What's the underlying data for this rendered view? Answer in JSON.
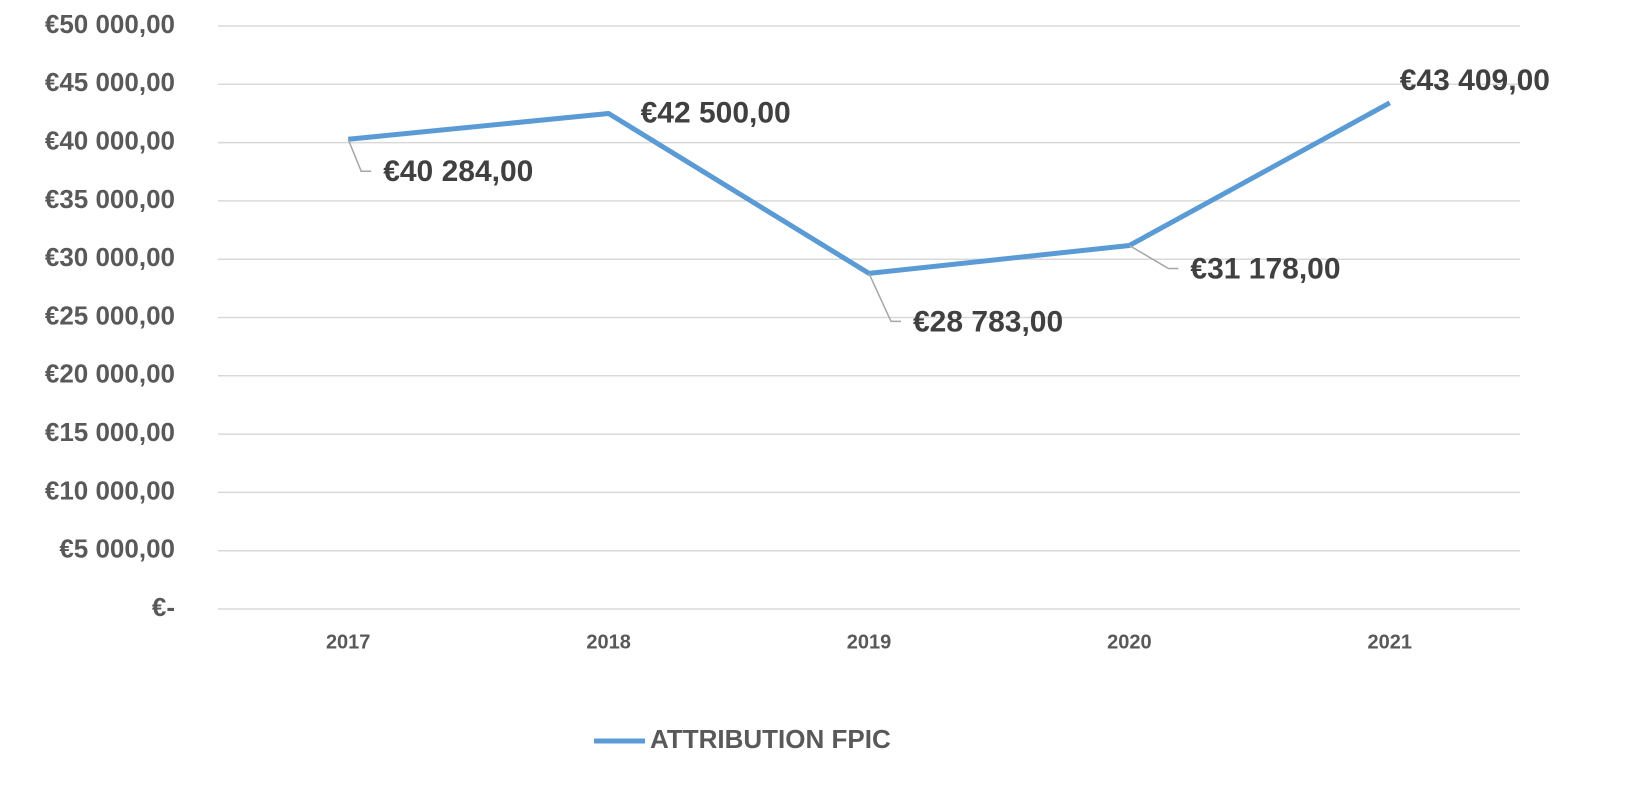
{
  "chart_data": {
    "type": "line",
    "categories": [
      "2017",
      "2018",
      "2019",
      "2020",
      "2021"
    ],
    "series": [
      {
        "name": "ATTRIBUTION FPIC",
        "color": "#5b9bd5",
        "values": [
          40284,
          42500,
          28783,
          31178,
          43409
        ],
        "value_labels": [
          "€40 284,00",
          "€42 500,00",
          "€28 783,00",
          "€31 178,00",
          "€43 409,00"
        ]
      }
    ],
    "ylim": [
      0,
      50000
    ],
    "yticks": [
      {
        "value": 0,
        "label": "€-"
      },
      {
        "value": 5000,
        "label": "€5 000,00"
      },
      {
        "value": 10000,
        "label": "€10 000,00"
      },
      {
        "value": 15000,
        "label": "€15 000,00"
      },
      {
        "value": 20000,
        "label": "€20 000,00"
      },
      {
        "value": 25000,
        "label": "€25 000,00"
      },
      {
        "value": 30000,
        "label": "€30 000,00"
      },
      {
        "value": 35000,
        "label": "€35 000,00"
      },
      {
        "value": 40000,
        "label": "€40 000,00"
      },
      {
        "value": 45000,
        "label": "€45 000,00"
      },
      {
        "value": 50000,
        "label": "€50 000,00"
      }
    ],
    "grid": true,
    "legend": "bottom"
  }
}
